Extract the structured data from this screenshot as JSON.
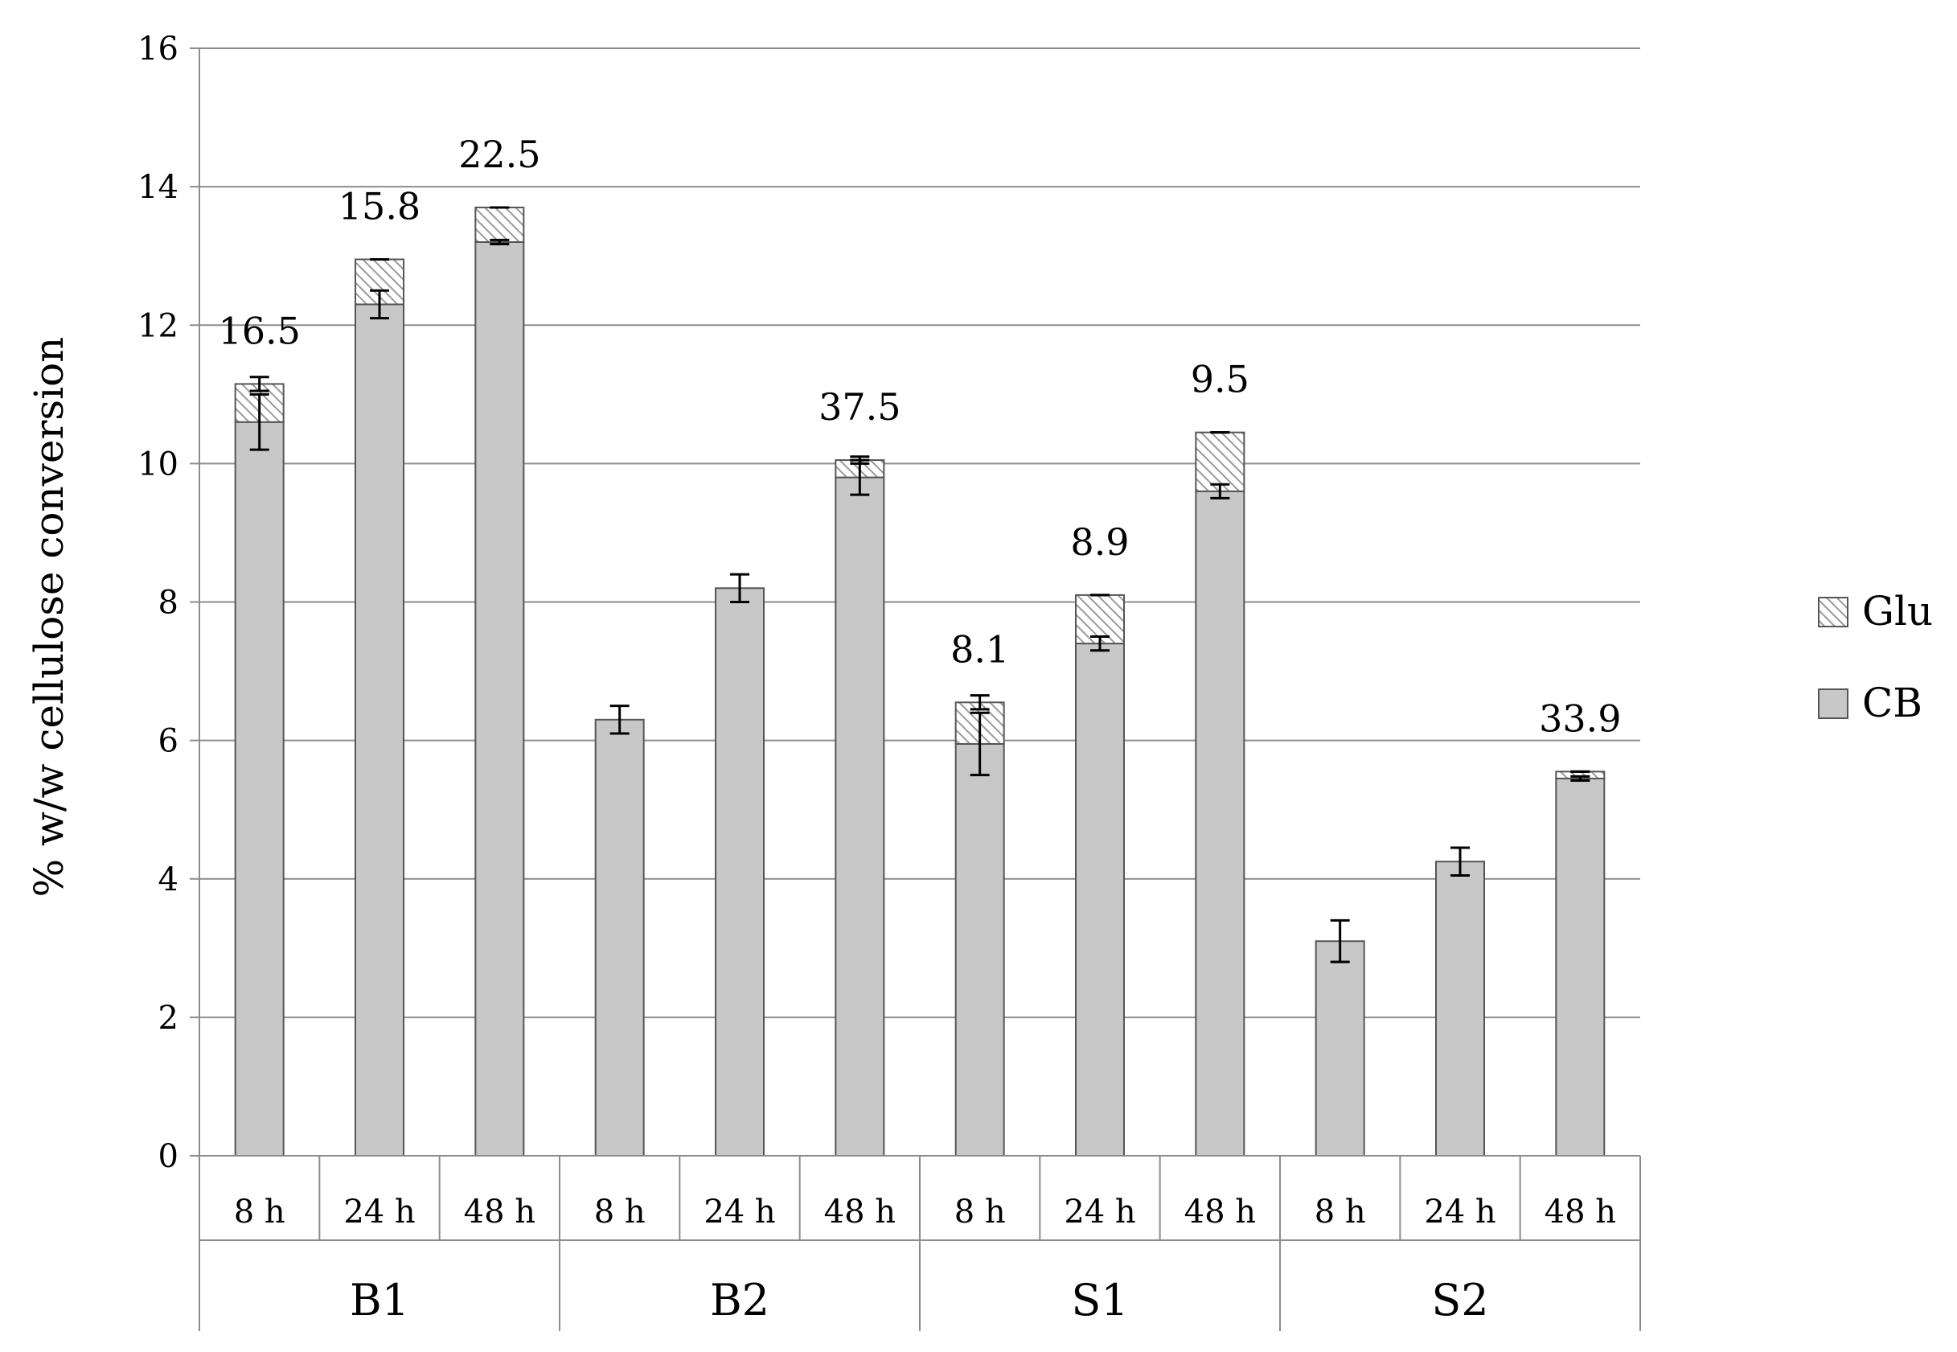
{
  "chart_data": {
    "type": "bar",
    "stacked": true,
    "ylabel": "% w/w cellulose conversion",
    "xlabel": "",
    "ylim": [
      0,
      16
    ],
    "yticks": [
      0,
      2,
      4,
      6,
      8,
      10,
      12,
      14,
      16
    ],
    "grid": true,
    "legend_position": "right",
    "groups": [
      {
        "label": "B1",
        "times": [
          "8 h",
          "24 h",
          "48 h"
        ]
      },
      {
        "label": "B2",
        "times": [
          "8 h",
          "24 h",
          "48 h"
        ]
      },
      {
        "label": "S1",
        "times": [
          "8 h",
          "24 h",
          "48 h"
        ]
      },
      {
        "label": "S2",
        "times": [
          "8 h",
          "24 h",
          "48 h"
        ]
      }
    ],
    "categories": [
      "B1 8 h",
      "B1 24 h",
      "B1 48 h",
      "B2 8 h",
      "B2 24 h",
      "B2 48 h",
      "S1 8 h",
      "S1 24 h",
      "S1 48 h",
      "S2 8 h",
      "S2 24 h",
      "S2 48 h"
    ],
    "series": [
      {
        "name": "CB",
        "color": "#c8c8c8",
        "pattern": "solid",
        "values": [
          10.6,
          12.3,
          13.2,
          6.3,
          8.2,
          9.8,
          5.95,
          7.4,
          9.6,
          3.1,
          4.25,
          5.45
        ],
        "errors": [
          0.4,
          0.2,
          0.03,
          0.2,
          0.2,
          0.25,
          0.45,
          0.1,
          0.1,
          0.3,
          0.2,
          0.03
        ]
      },
      {
        "name": "Glu",
        "color": "#c8c8c8",
        "pattern": "hatched",
        "values": [
          0.55,
          0.65,
          0.5,
          0.0,
          0.0,
          0.25,
          0.6,
          0.7,
          0.85,
          0.0,
          0.0,
          0.1
        ],
        "errors": [
          0.1,
          0.0,
          0.0,
          0.0,
          0.0,
          0.05,
          0.1,
          0.0,
          0.0,
          0.0,
          0.0,
          0.0
        ]
      }
    ],
    "annotations": [
      {
        "index": 0,
        "text": "16.5"
      },
      {
        "index": 1,
        "text": "15.8"
      },
      {
        "index": 2,
        "text": "22.5"
      },
      {
        "index": 5,
        "text": "37.5"
      },
      {
        "index": 6,
        "text": "8.1"
      },
      {
        "index": 7,
        "text": "8.9"
      },
      {
        "index": 8,
        "text": "9.5"
      },
      {
        "index": 11,
        "text": "33.9"
      }
    ]
  }
}
